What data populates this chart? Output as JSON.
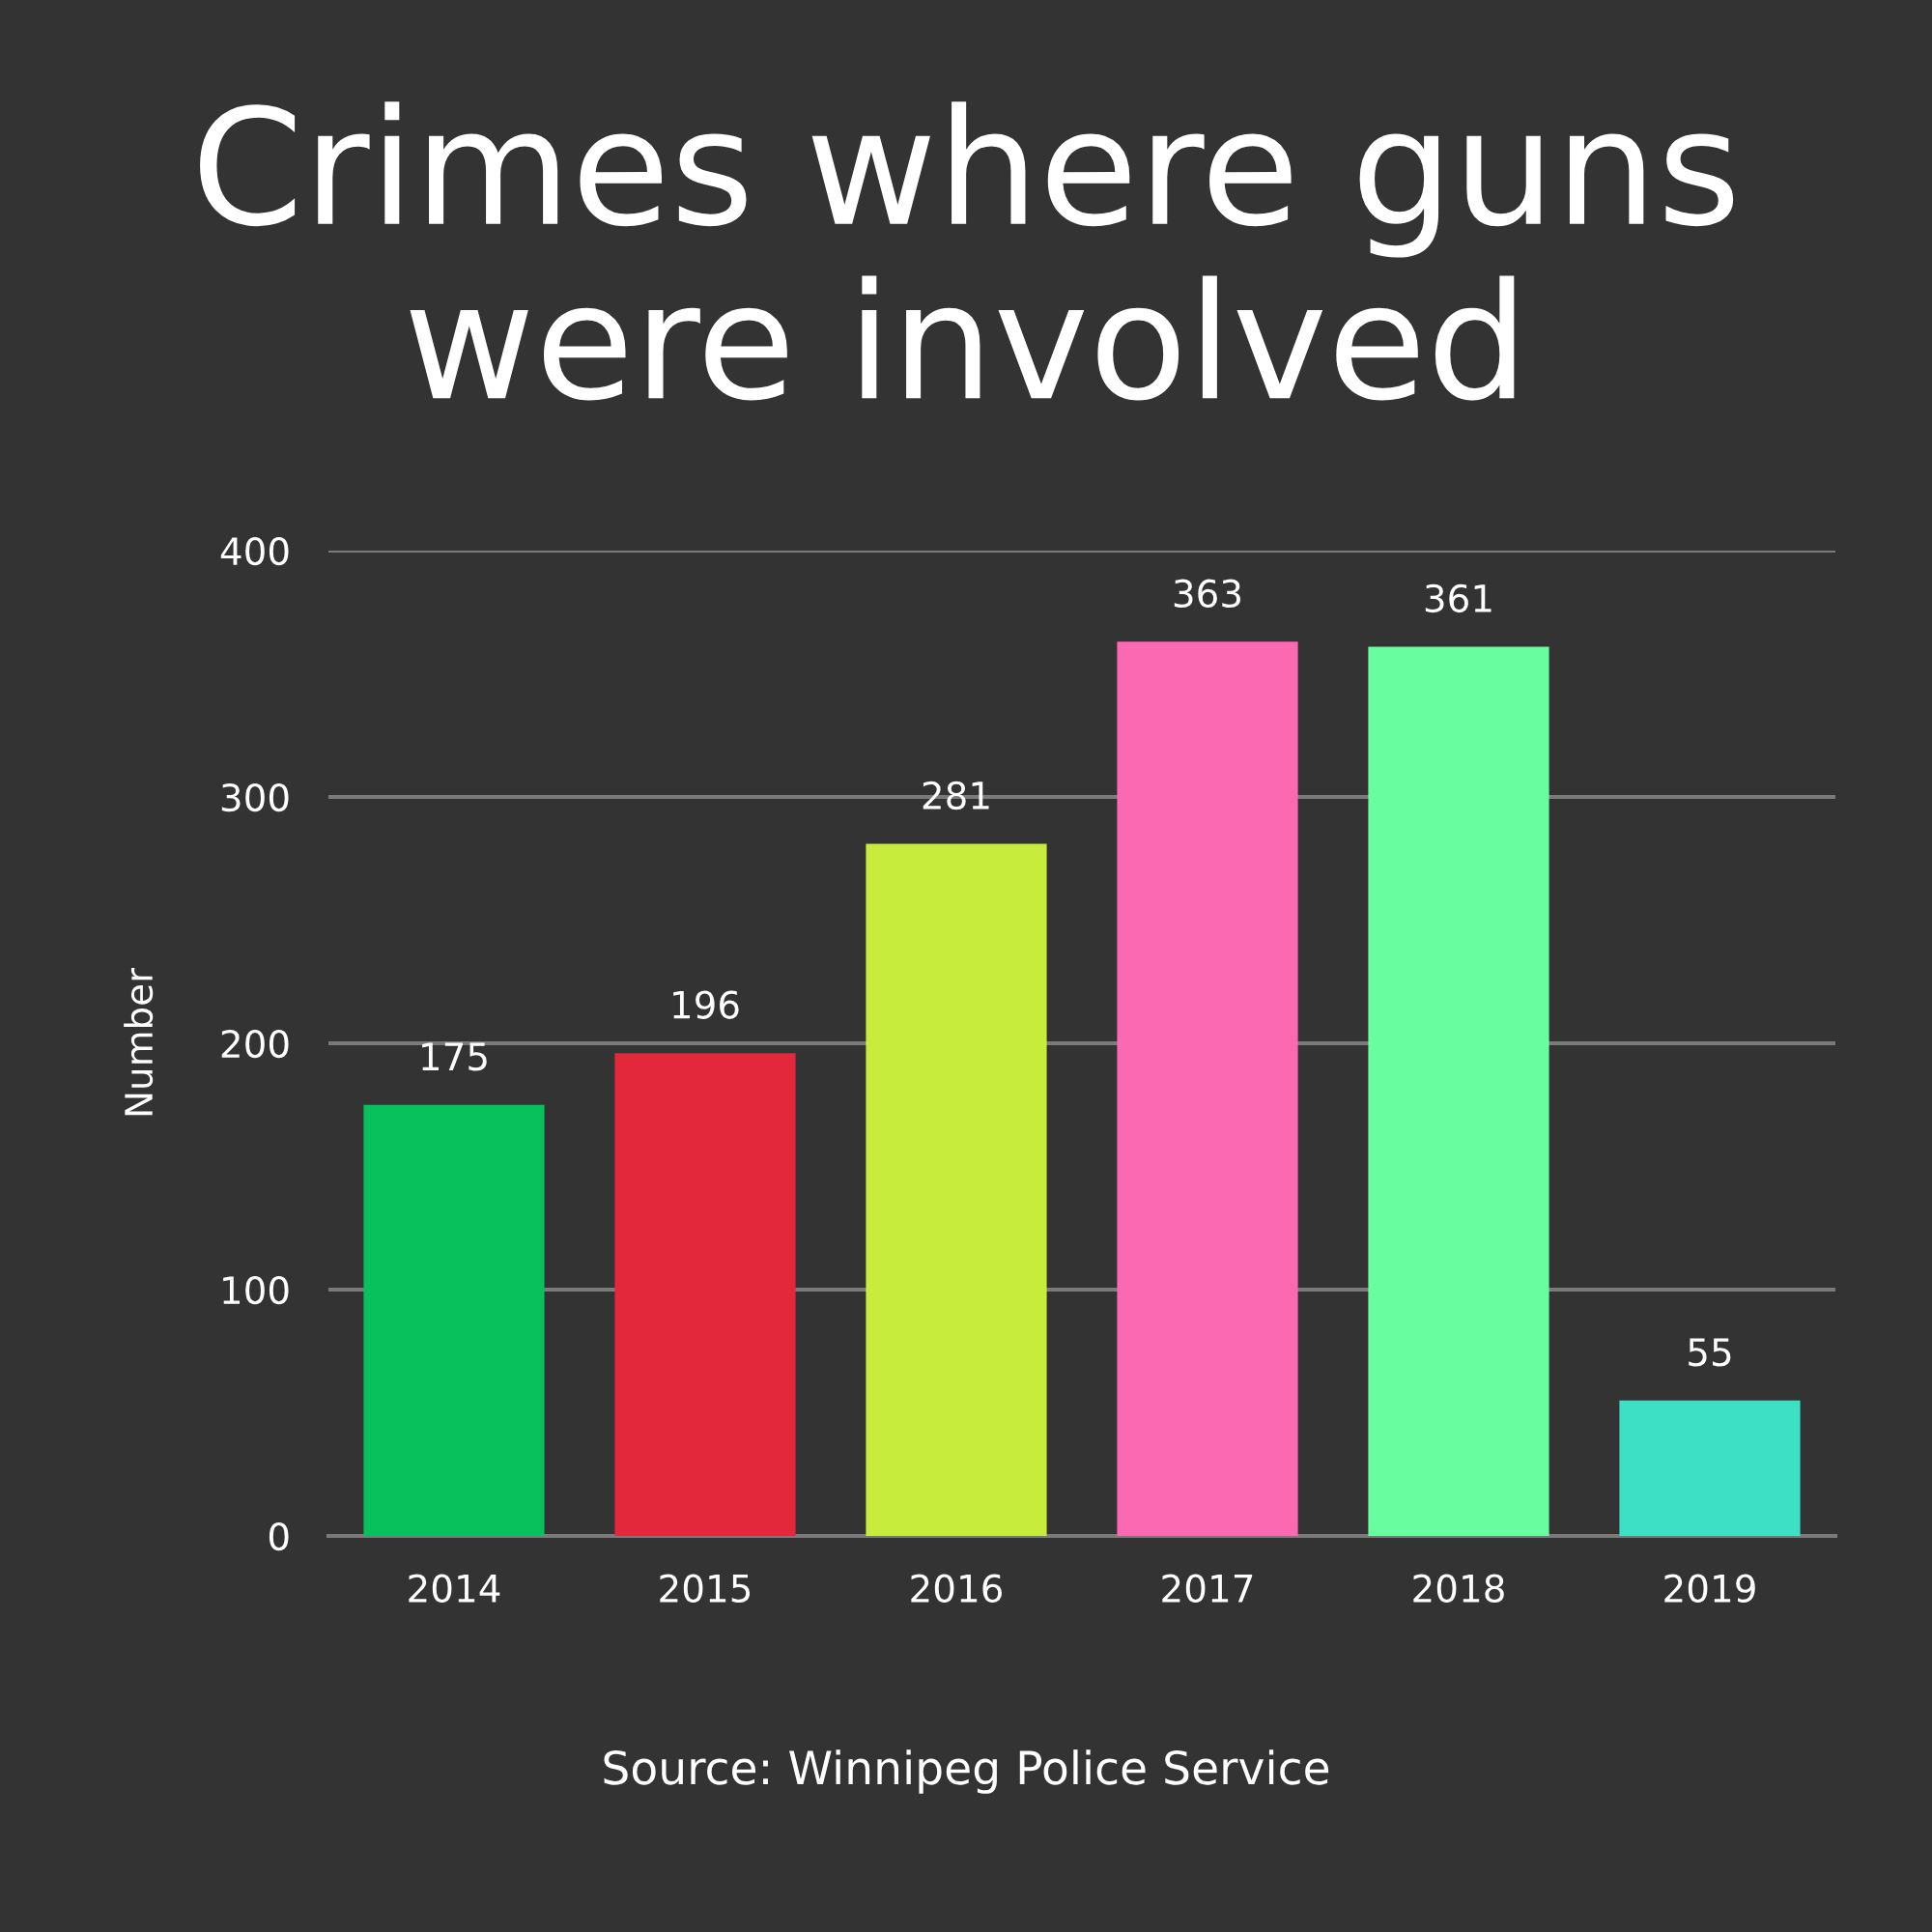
{
  "chart_data": {
    "type": "bar",
    "title": "Crimes where guns were involved",
    "ylabel": "Number",
    "categories": [
      "2014",
      "2015",
      "2016",
      "2017",
      "2018",
      "2019"
    ],
    "values": [
      175,
      196,
      281,
      363,
      361,
      55
    ],
    "colors": [
      "#08c05c",
      "#e4283c",
      "#c8ec3c",
      "#fa69b2",
      "#68fea0",
      "#3ddfc5"
    ],
    "ylim": [
      0,
      400
    ],
    "yticks": [
      0,
      100,
      200,
      300,
      400
    ],
    "grid": "y",
    "data_labels": true,
    "annotations": [
      "Source: Winnipeg Police Service"
    ]
  }
}
